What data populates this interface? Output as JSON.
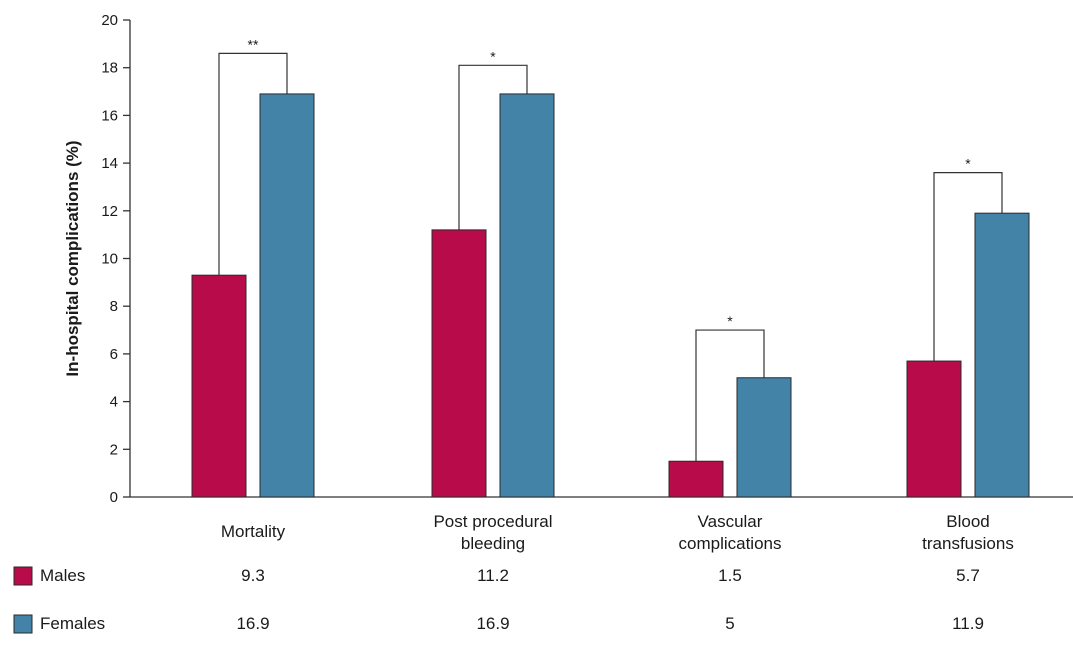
{
  "chart_data": {
    "type": "bar",
    "title": "",
    "xlabel": "",
    "ylabel": "In-hospital complications (%)",
    "ylim": [
      0,
      20
    ],
    "yticks": [
      0,
      2,
      4,
      6,
      8,
      10,
      12,
      14,
      16,
      18,
      20
    ],
    "grid": false,
    "categories": [
      [
        "Mortality"
      ],
      [
        "Post procedural",
        "bleeding"
      ],
      [
        "Vascular",
        "complications"
      ],
      [
        "Blood",
        "transfusions"
      ]
    ],
    "series": [
      {
        "name": "Males",
        "color": "#b80c4a",
        "values": [
          9.3,
          11.2,
          1.5,
          5.7
        ]
      },
      {
        "name": "Females",
        "color": "#4383a8",
        "values": [
          16.9,
          16.9,
          5,
          11.9
        ]
      }
    ],
    "significance": [
      {
        "category": 0,
        "label": "**",
        "y": 18.6
      },
      {
        "category": 1,
        "label": "*",
        "y": 18.1
      },
      {
        "category": 2,
        "label": "*",
        "y": 7.0
      },
      {
        "category": 3,
        "label": "*",
        "y": 13.6
      }
    ],
    "table": {
      "rows": [
        {
          "series": 0,
          "values": [
            "9.3",
            "11.2",
            "1.5",
            "5.7"
          ]
        },
        {
          "series": 1,
          "values": [
            "16.9",
            "16.9",
            "5",
            "11.9"
          ]
        }
      ]
    }
  }
}
